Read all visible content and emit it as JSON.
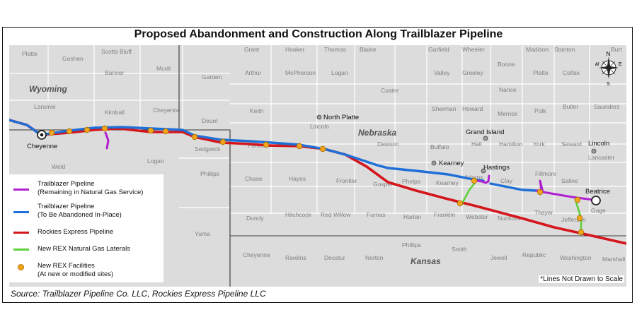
{
  "title": "Proposed Abandonment and Construction Along Trailblazer Pipeline",
  "source": "Source: Trailblazer Pipeline Co. LLC, Rockies Express Pipeline LLC",
  "note": "*Lines Not Drawn to Scale",
  "states": [
    "Wyoming",
    "Nebraska",
    "Kansas"
  ],
  "cities": [
    "Cheyenne",
    "North Platte",
    "Grand Island",
    "Kearney",
    "Hastings",
    "Lincoln",
    "Beatrice"
  ],
  "counties": [
    "Platte",
    "Goshen",
    "Scotts Bluff",
    "Banner",
    "Mcrill",
    "Garden",
    "Kimball",
    "Cheyenne",
    "Deuel",
    "Laramie",
    "Weld",
    "Logan",
    "Sedgwick",
    "Phillips",
    "Yuma",
    "Grant",
    "Hooker",
    "Thomas",
    "Blaine",
    "Garfield",
    "Wheeler",
    "Boone",
    "Madison",
    "Stanton",
    "Burt",
    "Arthur",
    "McPherson",
    "Logan",
    "Custer",
    "Valley",
    "Greeley",
    "Platte",
    "Colfax",
    "Nance",
    "Keith",
    "Lincoln",
    "Sherman",
    "Howard",
    "Merrick",
    "Polk",
    "Butler",
    "Saunders",
    "Dawson",
    "Buffalo",
    "Hall",
    "Hamilton",
    "York",
    "Seward",
    "Perkins",
    "Chase",
    "Hayes",
    "Frontier",
    "Gosper",
    "Phelps",
    "Kearney",
    "Adams",
    "Clay",
    "Fillmore",
    "Saline",
    "Lancaster",
    "Dundy",
    "Hitchcock",
    "Red Willow",
    "Furnas",
    "Harlan",
    "Franklin",
    "Webster",
    "Nuckolls",
    "Thayer",
    "Jefferson",
    "Gage",
    "Cheyenne",
    "Rawlins",
    "Decatur",
    "Norton",
    "Phillips",
    "Smith",
    "Jewell",
    "Republic",
    "Washington",
    "Marshall"
  ],
  "legend": {
    "trailblazer_remaining": {
      "label1": "Trailblazer Pipeline",
      "label2": "(Remaining in Natural Gas Service)",
      "color": "#b01fd0"
    },
    "trailblazer_abandoned": {
      "label1": "Trailblazer Pipeline",
      "label2": "(To Be Abandoned In-Place)",
      "color": "#1f6fd8"
    },
    "rockies_express": {
      "label1": "Rockies Express Pipeline",
      "color": "#d4161c"
    },
    "rex_laterals": {
      "label1": "New REX Natural Gas Laterals",
      "color": "#5fd13a"
    },
    "rex_facilities": {
      "label1": "New REX Facilities",
      "label2": "(At new or modified sites)",
      "color": "#f2a51c"
    }
  },
  "compass": {
    "n": "N",
    "e": "E",
    "s": "S",
    "w": "W"
  },
  "colors": {
    "map_fill": "#dcdcdc",
    "county_line": "#ffffff",
    "state_line": "#333333"
  }
}
